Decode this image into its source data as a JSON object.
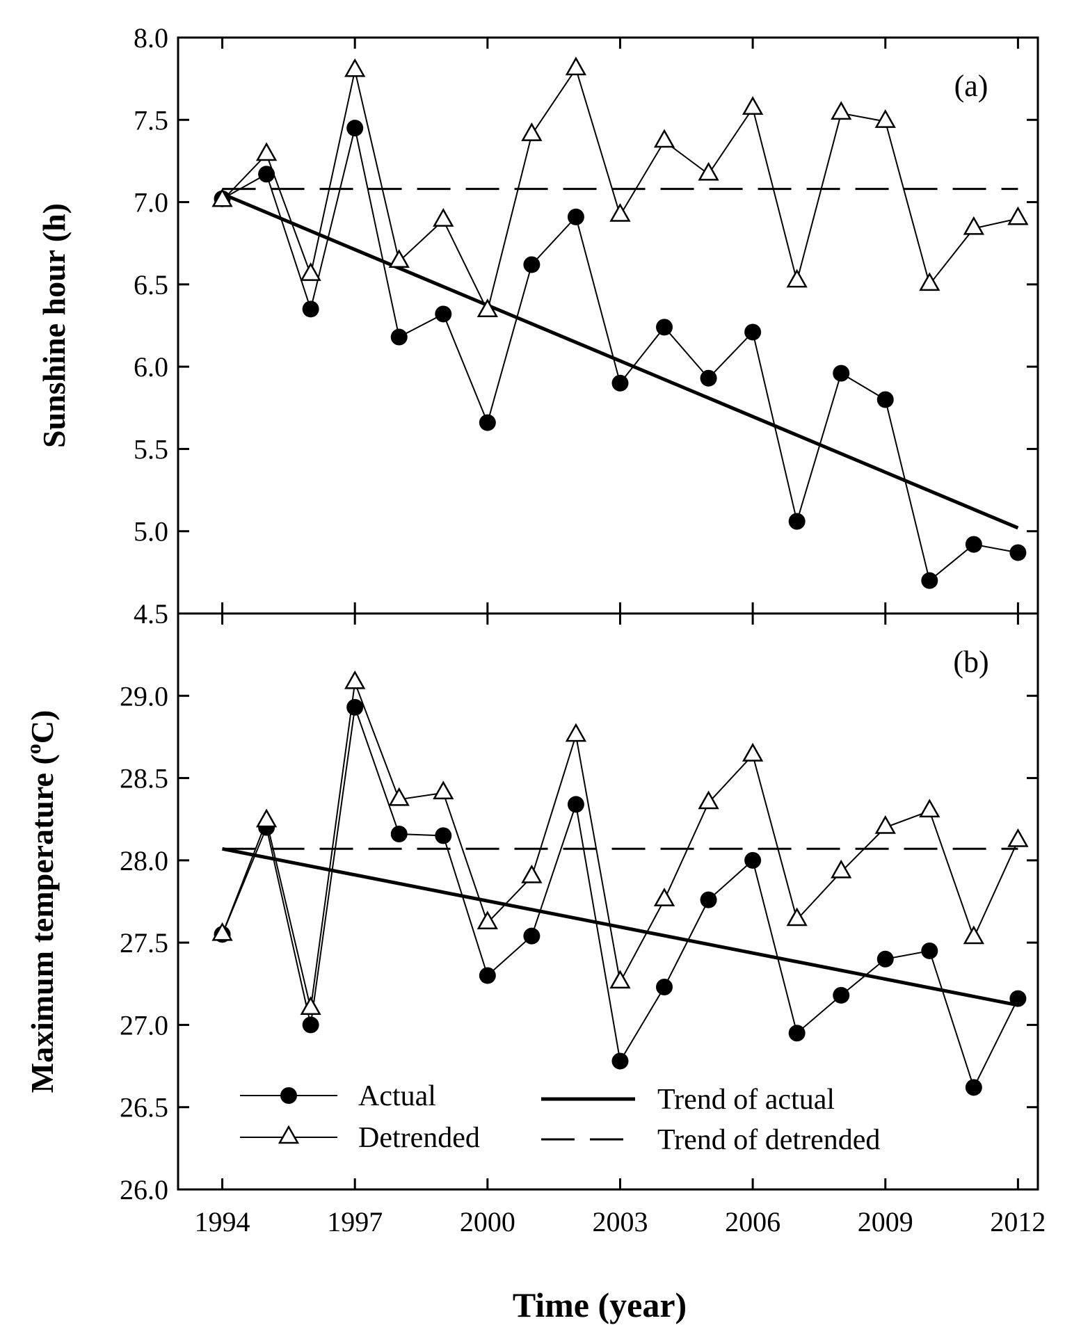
{
  "chart_data": [
    {
      "type": "line",
      "panel": "(a)",
      "ylabel": "Sunshine hour (h)",
      "xlabel": "Time (year)",
      "ylim": [
        4.5,
        8.0
      ],
      "xlim": [
        1993,
        2012.45
      ],
      "yticks": [
        "4.5",
        "5.0",
        "5.5",
        "6.0",
        "6.5",
        "7.0",
        "7.5",
        "8.0"
      ],
      "x": [
        1994,
        1995,
        1996,
        1997,
        1998,
        1999,
        2000,
        2001,
        2002,
        2003,
        2004,
        2005,
        2006,
        2007,
        2008,
        2009,
        2010,
        2011,
        2012
      ],
      "series": [
        {
          "name": "Actual",
          "marker": "circle",
          "values": [
            7.02,
            7.17,
            6.35,
            7.45,
            6.18,
            6.32,
            5.66,
            6.62,
            6.91,
            5.9,
            6.24,
            5.93,
            6.21,
            5.06,
            5.96,
            5.8,
            4.7,
            4.92,
            4.87
          ]
        },
        {
          "name": "Detrended",
          "marker": "triangle",
          "values": [
            7.01,
            7.29,
            6.56,
            7.8,
            6.64,
            6.89,
            6.34,
            7.41,
            7.81,
            6.92,
            7.37,
            7.17,
            7.57,
            6.52,
            7.54,
            7.49,
            6.5,
            6.84,
            6.9
          ]
        },
        {
          "name": "Trend of actual",
          "style": "solid",
          "values": [
            7.05,
            5.02
          ],
          "x": [
            1994,
            2012
          ]
        },
        {
          "name": "Trend of detrended",
          "style": "dashed",
          "values": [
            7.08,
            7.08
          ],
          "x": [
            1994,
            2012
          ]
        }
      ]
    },
    {
      "type": "line",
      "panel": "(b)",
      "ylabel": "Maximum temperature (°C)",
      "xlabel": "Time (year)",
      "ylim": [
        26.0,
        29.5
      ],
      "xlim": [
        1993,
        2012.45
      ],
      "xticks": [
        "1994",
        "1997",
        "2000",
        "2003",
        "2006",
        "2009",
        "2012"
      ],
      "yticks": [
        "26.0",
        "26.5",
        "27.0",
        "27.5",
        "28.0",
        "28.5",
        "29.0"
      ],
      "x": [
        1994,
        1995,
        1996,
        1997,
        1998,
        1999,
        2000,
        2001,
        2002,
        2003,
        2004,
        2005,
        2006,
        2007,
        2008,
        2009,
        2010,
        2011,
        2012
      ],
      "series": [
        {
          "name": "Actual",
          "marker": "circle",
          "values": [
            27.55,
            28.2,
            27.0,
            28.93,
            28.16,
            28.15,
            27.3,
            27.54,
            28.34,
            26.78,
            27.23,
            27.76,
            28.0,
            26.95,
            27.18,
            27.4,
            27.45,
            26.62,
            27.16
          ]
        },
        {
          "name": "Detrended",
          "marker": "triangle",
          "values": [
            27.55,
            28.24,
            27.1,
            29.08,
            28.37,
            28.41,
            27.62,
            27.9,
            28.76,
            27.26,
            27.76,
            28.35,
            28.64,
            27.64,
            27.93,
            28.2,
            28.3,
            27.53,
            28.12
          ]
        },
        {
          "name": "Trend of actual",
          "style": "solid",
          "values": [
            28.07,
            27.12
          ],
          "x": [
            1994,
            2012
          ]
        },
        {
          "name": "Trend of detrended",
          "style": "dashed",
          "values": [
            28.07,
            28.07
          ],
          "x": [
            1994,
            2012
          ]
        }
      ],
      "legend": {
        "entries": [
          "Actual",
          "Detrended",
          "Trend of actual",
          "Trend of detrended"
        ],
        "position": "bottom-left"
      }
    }
  ]
}
